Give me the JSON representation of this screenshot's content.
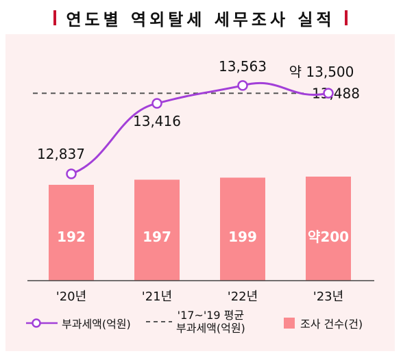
{
  "title": "연도별 역외탈세 세무조사 실적",
  "chart_data": {
    "type": "bar",
    "categories": [
      "'20년",
      "'21년",
      "'22년",
      "'23년"
    ],
    "bars": {
      "name": "조사 건수(건)",
      "values": [
        192,
        197,
        199,
        200
      ],
      "labels": [
        "192",
        "197",
        "199",
        "약200"
      ],
      "color": "#fa8a8f"
    },
    "line": {
      "name": "부과세액(억원)",
      "values": [
        12837,
        13416,
        13563,
        13500
      ],
      "labels": [
        "12,837",
        "13,416",
        "13,563",
        "약 13,500"
      ],
      "color": "#a23fd8"
    },
    "reference": {
      "name": "'17~'19 평균 부과세액(억원)",
      "value": 13488,
      "label": "13,488",
      "color": "#555555"
    }
  },
  "legend": {
    "line_label": "부과세액(억원)",
    "ref_label_1": "'17~'19 평균",
    "ref_label_2": "부과세액(억원)",
    "bar_label": "조사 건수(건)"
  }
}
